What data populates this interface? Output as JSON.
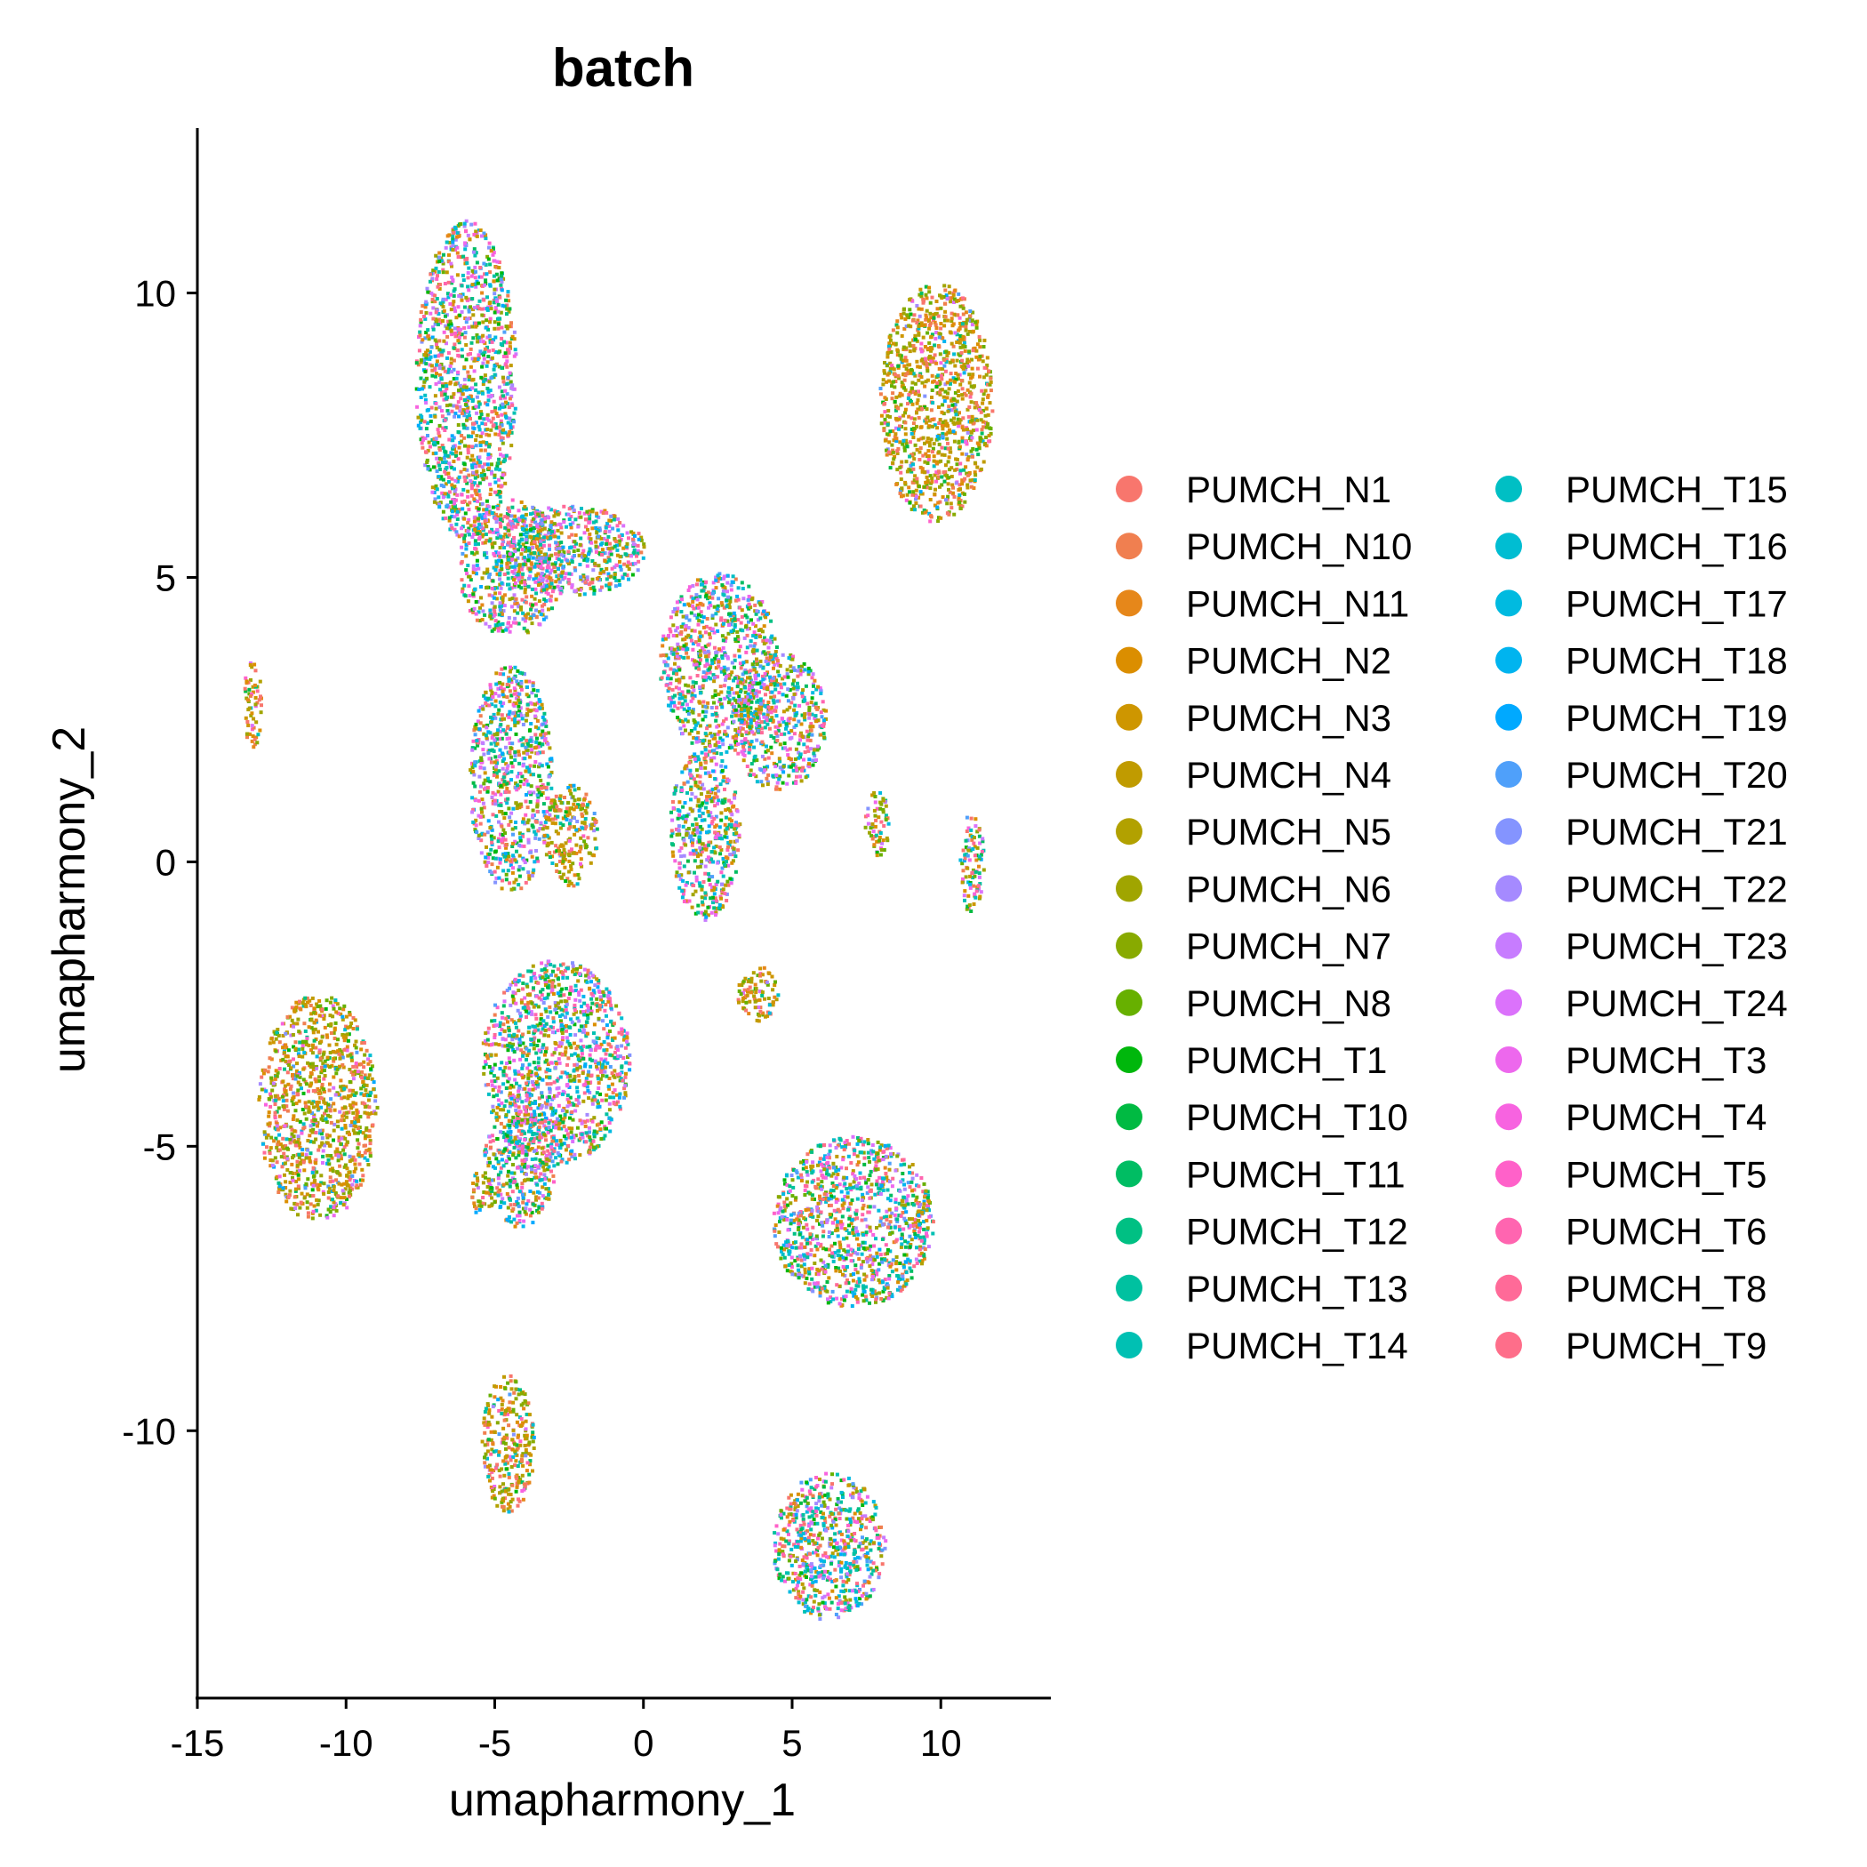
{
  "chart_data": {
    "type": "scatter",
    "title": "batch",
    "xlabel": "umapharmony_1",
    "ylabel": "umapharmony_2",
    "xlim": [
      -15,
      13.7
    ],
    "ylim": [
      -14.7,
      12.9
    ],
    "x_ticks": [
      -15,
      -10,
      -5,
      0,
      5,
      10
    ],
    "y_ticks": [
      -10,
      -5,
      0,
      5,
      10
    ],
    "x_tick_labels": [
      "-15",
      "-10",
      "-5",
      "0",
      "5",
      "10"
    ],
    "y_tick_labels": [
      "-10",
      "-5",
      "0",
      "5",
      "10"
    ],
    "grid": false,
    "legend_position": "right",
    "legend_columns": 2,
    "series": [
      {
        "name": "PUMCH_N1",
        "color": "#F8766D"
      },
      {
        "name": "PUMCH_N10",
        "color": "#F07F50"
      },
      {
        "name": "PUMCH_N11",
        "color": "#E6871A"
      },
      {
        "name": "PUMCH_N2",
        "color": "#DB8E00"
      },
      {
        "name": "PUMCH_N3",
        "color": "#CE9600"
      },
      {
        "name": "PUMCH_N4",
        "color": "#C09B00"
      },
      {
        "name": "PUMCH_N5",
        "color": "#B2A100"
      },
      {
        "name": "PUMCH_N6",
        "color": "#A0A500"
      },
      {
        "name": "PUMCH_N7",
        "color": "#88AA00"
      },
      {
        "name": "PUMCH_N8",
        "color": "#67B000"
      },
      {
        "name": "PUMCH_T1",
        "color": "#00B70C"
      },
      {
        "name": "PUMCH_T10",
        "color": "#00BA42"
      },
      {
        "name": "PUMCH_T11",
        "color": "#00BD63"
      },
      {
        "name": "PUMCH_T12",
        "color": "#00C083"
      },
      {
        "name": "PUMCH_T13",
        "color": "#00C1A0"
      },
      {
        "name": "PUMCH_T14",
        "color": "#00C0B3"
      },
      {
        "name": "PUMCH_T15",
        "color": "#00BFC4"
      },
      {
        "name": "PUMCH_T16",
        "color": "#00BDD2"
      },
      {
        "name": "PUMCH_T17",
        "color": "#00BAE0"
      },
      {
        "name": "PUMCH_T18",
        "color": "#00B4EF"
      },
      {
        "name": "PUMCH_T19",
        "color": "#00A9FF"
      },
      {
        "name": "PUMCH_T20",
        "color": "#4FA0FA"
      },
      {
        "name": "PUMCH_T21",
        "color": "#8494FF"
      },
      {
        "name": "PUMCH_T22",
        "color": "#A58AFF"
      },
      {
        "name": "PUMCH_T23",
        "color": "#C77CFF"
      },
      {
        "name": "PUMCH_T24",
        "color": "#DB72FB"
      },
      {
        "name": "PUMCH_T3",
        "color": "#ED68ED"
      },
      {
        "name": "PUMCH_T4",
        "color": "#F763E0"
      },
      {
        "name": "PUMCH_T5",
        "color": "#FF61C9"
      },
      {
        "name": "PUMCH_T6",
        "color": "#FF65B0"
      },
      {
        "name": "PUMCH_T8",
        "color": "#FF6A98"
      },
      {
        "name": "PUMCH_T9",
        "color": "#FE6E8A"
      }
    ],
    "clusters": [
      {
        "cx": -6.0,
        "cy": 8.5,
        "rx": 1.7,
        "ry": 2.8,
        "dominant": "mixed"
      },
      {
        "cx": -4.5,
        "cy": 5.2,
        "rx": 1.8,
        "ry": 1.2,
        "dominant": "mixed"
      },
      {
        "cx": -4.5,
        "cy": 1.5,
        "rx": 1.4,
        "ry": 2.0,
        "dominant": "mixed"
      },
      {
        "cx": -2.5,
        "cy": 5.5,
        "rx": 2.5,
        "ry": 0.8,
        "dominant": "mixed"
      },
      {
        "cx": 2.5,
        "cy": 3.5,
        "rx": 2.0,
        "ry": 1.6,
        "dominant": "mixed"
      },
      {
        "cx": 4.5,
        "cy": 2.5,
        "rx": 1.6,
        "ry": 1.2,
        "dominant": "mixed"
      },
      {
        "cx": 2.0,
        "cy": 0.5,
        "rx": 1.2,
        "ry": 1.5,
        "dominant": "mixed"
      },
      {
        "cx": -2.5,
        "cy": 0.5,
        "rx": 0.9,
        "ry": 0.9,
        "dominant": "N"
      },
      {
        "cx": -3.0,
        "cy": -3.5,
        "rx": 2.5,
        "ry": 1.8,
        "dominant": "mixed"
      },
      {
        "cx": -4.2,
        "cy": -5.2,
        "rx": 1.2,
        "ry": 1.2,
        "dominant": "mixed"
      },
      {
        "cx": -11.0,
        "cy": -4.3,
        "rx": 2.0,
        "ry": 2.0,
        "dominant": "N"
      },
      {
        "cx": 9.8,
        "cy": 8.1,
        "rx": 1.9,
        "ry": 2.1,
        "dominant": "N"
      },
      {
        "cx": 7.0,
        "cy": -6.3,
        "rx": 2.7,
        "ry": 1.5,
        "dominant": "mixed"
      },
      {
        "cx": 6.2,
        "cy": -12.0,
        "rx": 1.9,
        "ry": 1.3,
        "dominant": "mixed"
      },
      {
        "cx": -4.6,
        "cy": -10.2,
        "rx": 0.9,
        "ry": 1.2,
        "dominant": "N"
      },
      {
        "cx": -13.2,
        "cy": 2.8,
        "rx": 0.3,
        "ry": 0.8,
        "dominant": "N"
      },
      {
        "cx": 7.8,
        "cy": 0.7,
        "rx": 0.4,
        "ry": 0.6,
        "dominant": "N"
      },
      {
        "cx": 11.0,
        "cy": 0.0,
        "rx": 0.4,
        "ry": 0.9,
        "dominant": "mixed"
      },
      {
        "cx": 3.8,
        "cy": -2.3,
        "rx": 0.7,
        "ry": 0.5,
        "dominant": "N"
      },
      {
        "cx": -5.5,
        "cy": -5.8,
        "rx": 0.4,
        "ry": 0.4,
        "dominant": "N"
      }
    ]
  }
}
